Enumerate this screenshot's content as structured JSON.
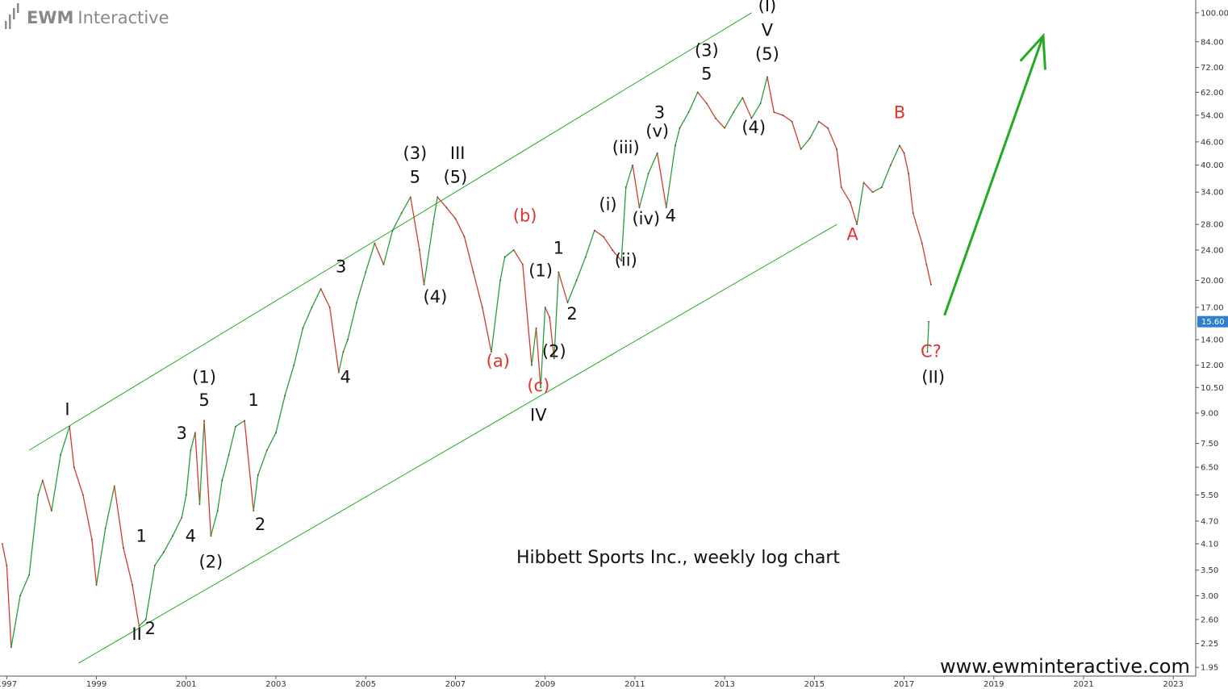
{
  "brand": {
    "name_bold": "EWM",
    "name_light": "Interactive"
  },
  "watermark": "www.ewminteractive.com",
  "current_price": {
    "label": "15.60",
    "value": 15.6,
    "color": "#2f7fd0"
  },
  "colors": {
    "channel": "#22aa22",
    "arrow": "#22aa22",
    "up": "#2a9d3a",
    "down": "#d23c2c",
    "red_label": "#e0332e"
  },
  "chart_data": {
    "type": "line",
    "title": "Hibbett Sports Inc., weekly log chart",
    "yscale": "log",
    "ylim": [
      1.85,
      108
    ],
    "xlim": [
      1996.85,
      2023.5
    ],
    "x_ticks": [
      "1997",
      "1999",
      "2001",
      "2003",
      "2005",
      "2007",
      "2009",
      "2011",
      "2013",
      "2015",
      "2017",
      "2019",
      "2021",
      "2023"
    ],
    "y_ticks": [
      "1.95",
      "2.25",
      "2.60",
      "3.00",
      "3.50",
      "4.10",
      "4.70",
      "5.50",
      "6.50",
      "7.50",
      "9.00",
      "10.50",
      "12.00",
      "14.00",
      "17.00",
      "20.00",
      "24.00",
      "28.00",
      "34.00",
      "40.00",
      "46.00",
      "54.00",
      "62.00",
      "72.00",
      "84.00",
      "100.00"
    ],
    "series": [
      {
        "x": [
          1996.9,
          1997.0,
          1997.1,
          1997.3,
          1997.5,
          1997.7,
          1997.8,
          1998.0,
          1998.2,
          1998.4,
          1998.5,
          1998.7,
          1998.9,
          1999.0,
          1999.2,
          1999.4,
          1999.6,
          1999.8,
          1999.95,
          2000.1,
          2000.3,
          2000.5,
          2000.7,
          2000.9,
          2001.0,
          2001.1,
          2001.2,
          2001.3,
          2001.4,
          2001.55,
          2001.7,
          2001.8,
          2001.95,
          2002.1,
          2002.3,
          2002.5,
          2002.6,
          2002.8,
          2003.0,
          2003.2,
          2003.4,
          2003.6,
          2003.8,
          2004.0,
          2004.2,
          2004.4,
          2004.5,
          2004.6,
          2004.8,
          2005.0,
          2005.2,
          2005.4,
          2005.6,
          2005.8,
          2006.0,
          2006.2,
          2006.3,
          2006.5,
          2006.6,
          2006.8,
          2007.0,
          2007.2,
          2007.4,
          2007.6,
          2007.8,
          2008.0,
          2008.1,
          2008.3,
          2008.5,
          2008.7,
          2008.8,
          2008.9,
          2009.0,
          2009.1,
          2009.2,
          2009.3,
          2009.5,
          2009.7,
          2009.9,
          2010.1,
          2010.3,
          2010.5,
          2010.7,
          2010.8,
          2010.95,
          2011.1,
          2011.3,
          2011.5,
          2011.7,
          2011.9,
          2012.0,
          2012.2,
          2012.4,
          2012.6,
          2012.8,
          2013.0,
          2013.2,
          2013.4,
          2013.6,
          2013.8,
          2013.95,
          2014.1,
          2014.3,
          2014.5,
          2014.7,
          2014.9,
          2015.1,
          2015.3,
          2015.5,
          2015.6,
          2015.8,
          2015.95,
          2016.1,
          2016.3,
          2016.5,
          2016.7,
          2016.9,
          2017.0,
          2017.1,
          2017.2,
          2017.4,
          2017.5,
          2017.6
        ],
        "y": [
          4.1,
          3.6,
          2.2,
          3.0,
          3.4,
          5.5,
          6.0,
          5.0,
          7.0,
          8.3,
          6.5,
          5.5,
          4.2,
          3.2,
          4.5,
          5.8,
          4.0,
          3.2,
          2.5,
          2.6,
          3.6,
          3.9,
          4.3,
          4.8,
          5.5,
          7.2,
          8.0,
          5.2,
          8.6,
          4.3,
          5.0,
          6.0,
          7.0,
          8.3,
          8.6,
          5.0,
          6.2,
          7.2,
          8.0,
          10.0,
          12.0,
          15.0,
          17.0,
          19.0,
          17.0,
          11.5,
          13.0,
          14.0,
          17.5,
          21.0,
          25.0,
          22.0,
          27.0,
          30.0,
          33.0,
          24.0,
          19.5,
          28.0,
          33.0,
          31.0,
          29.0,
          26.0,
          21.0,
          17.0,
          13.0,
          20.0,
          23.0,
          24.0,
          22.0,
          12.0,
          15.0,
          10.5,
          17.0,
          16.0,
          12.5,
          21.0,
          17.5,
          20.0,
          23.0,
          27.0,
          26.0,
          24.0,
          22.5,
          35.0,
          40.0,
          31.0,
          38.0,
          43.0,
          31.0,
          45.0,
          50.0,
          55.0,
          62.0,
          58.0,
          53.0,
          50.0,
          55.0,
          60.0,
          53.0,
          58.0,
          68.0,
          55.0,
          54.0,
          52.0,
          44.0,
          47.0,
          52.0,
          50.0,
          44.0,
          35.0,
          32.0,
          28.0,
          36.0,
          34.0,
          35.0,
          40.0,
          45.0,
          43.0,
          38.0,
          30.0,
          25.0,
          22.0,
          19.5
        ]
      },
      {
        "x": [
          2017.52,
          2017.55
        ],
        "y": [
          13.0,
          15.6
        ]
      }
    ],
    "channel": {
      "upper": [
        {
          "x": 1997.5,
          "y": 7.2
        },
        {
          "x": 2013.6,
          "y": 100.0
        }
      ],
      "lower": [
        {
          "x": 1998.6,
          "y": 2.0
        },
        {
          "x": 2015.5,
          "y": 28.0
        }
      ]
    },
    "forecast_arrow": [
      {
        "x": 2017.9,
        "y": 16.2
      },
      {
        "x": 2020.1,
        "y": 87.0
      }
    ],
    "annotations": [
      {
        "text": "I",
        "x": 1998.35,
        "y": 8.9,
        "color": "black"
      },
      {
        "text": "II",
        "x": 1999.9,
        "y": 2.3,
        "color": "black"
      },
      {
        "text": "2",
        "x": 2000.2,
        "y": 2.38,
        "color": "black"
      },
      {
        "text": "1",
        "x": 2000.0,
        "y": 4.15,
        "color": "black"
      },
      {
        "text": "3",
        "x": 2000.9,
        "y": 7.7,
        "color": "black"
      },
      {
        "text": "4",
        "x": 2001.1,
        "y": 4.15,
        "color": "black"
      },
      {
        "text": "(1)",
        "x": 2001.4,
        "y": 10.8,
        "color": "black"
      },
      {
        "text": "5",
        "x": 2001.4,
        "y": 9.4,
        "color": "black"
      },
      {
        "text": "(2)",
        "x": 2001.55,
        "y": 3.55,
        "color": "black"
      },
      {
        "text": "1",
        "x": 2002.5,
        "y": 9.4,
        "color": "black"
      },
      {
        "text": "2",
        "x": 2002.65,
        "y": 4.45,
        "color": "black"
      },
      {
        "text": "3",
        "x": 2004.45,
        "y": 21.0,
        "color": "black"
      },
      {
        "text": "4",
        "x": 2004.55,
        "y": 10.8,
        "color": "black"
      },
      {
        "text": "(3)",
        "x": 2006.1,
        "y": 41.5,
        "color": "black"
      },
      {
        "text": "5",
        "x": 2006.1,
        "y": 36.0,
        "color": "black"
      },
      {
        "text": "III",
        "x": 2007.05,
        "y": 41.5,
        "color": "black"
      },
      {
        "text": "(5)",
        "x": 2007.0,
        "y": 36.0,
        "color": "black"
      },
      {
        "text": "(4)",
        "x": 2006.55,
        "y": 17.5,
        "color": "black"
      },
      {
        "text": "(b)",
        "x": 2008.55,
        "y": 28.5,
        "color": "red"
      },
      {
        "text": "(a)",
        "x": 2007.95,
        "y": 11.9,
        "color": "red"
      },
      {
        "text": "1",
        "x": 2009.3,
        "y": 23.5,
        "color": "black"
      },
      {
        "text": "(1)",
        "x": 2008.9,
        "y": 20.5,
        "color": "black"
      },
      {
        "text": "(2)",
        "x": 2009.2,
        "y": 12.6,
        "color": "black"
      },
      {
        "text": "2",
        "x": 2009.6,
        "y": 15.8,
        "color": "black"
      },
      {
        "text": "(c)",
        "x": 2008.85,
        "y": 10.25,
        "color": "red"
      },
      {
        "text": "IV",
        "x": 2008.85,
        "y": 8.6,
        "color": "black"
      },
      {
        "text": "(i)",
        "x": 2010.4,
        "y": 30.5,
        "color": "black"
      },
      {
        "text": "(ii)",
        "x": 2010.8,
        "y": 21.8,
        "color": "black"
      },
      {
        "text": "(iii)",
        "x": 2010.8,
        "y": 43.0,
        "color": "black"
      },
      {
        "text": "(iv)",
        "x": 2011.25,
        "y": 28.0,
        "color": "black"
      },
      {
        "text": "(v)",
        "x": 2011.5,
        "y": 47.5,
        "color": "black"
      },
      {
        "text": "3",
        "x": 2011.55,
        "y": 53.0,
        "color": "black"
      },
      {
        "text": "4",
        "x": 2011.8,
        "y": 28.5,
        "color": "black"
      },
      {
        "text": "(3)",
        "x": 2012.6,
        "y": 77.0,
        "color": "black"
      },
      {
        "text": "5",
        "x": 2012.6,
        "y": 67.0,
        "color": "black"
      },
      {
        "text": "(I)",
        "x": 2013.95,
        "y": 101.0,
        "color": "black"
      },
      {
        "text": "V",
        "x": 2013.95,
        "y": 87.0,
        "color": "black"
      },
      {
        "text": "(5)",
        "x": 2013.95,
        "y": 75.5,
        "color": "black"
      },
      {
        "text": "(4)",
        "x": 2013.65,
        "y": 48.5,
        "color": "black"
      },
      {
        "text": "B",
        "x": 2016.9,
        "y": 53.0,
        "color": "red"
      },
      {
        "text": "A",
        "x": 2015.85,
        "y": 25.5,
        "color": "red"
      },
      {
        "text": "C?",
        "x": 2017.6,
        "y": 12.6,
        "color": "red"
      },
      {
        "text": "(II)",
        "x": 2017.65,
        "y": 10.8,
        "color": "black"
      }
    ]
  }
}
